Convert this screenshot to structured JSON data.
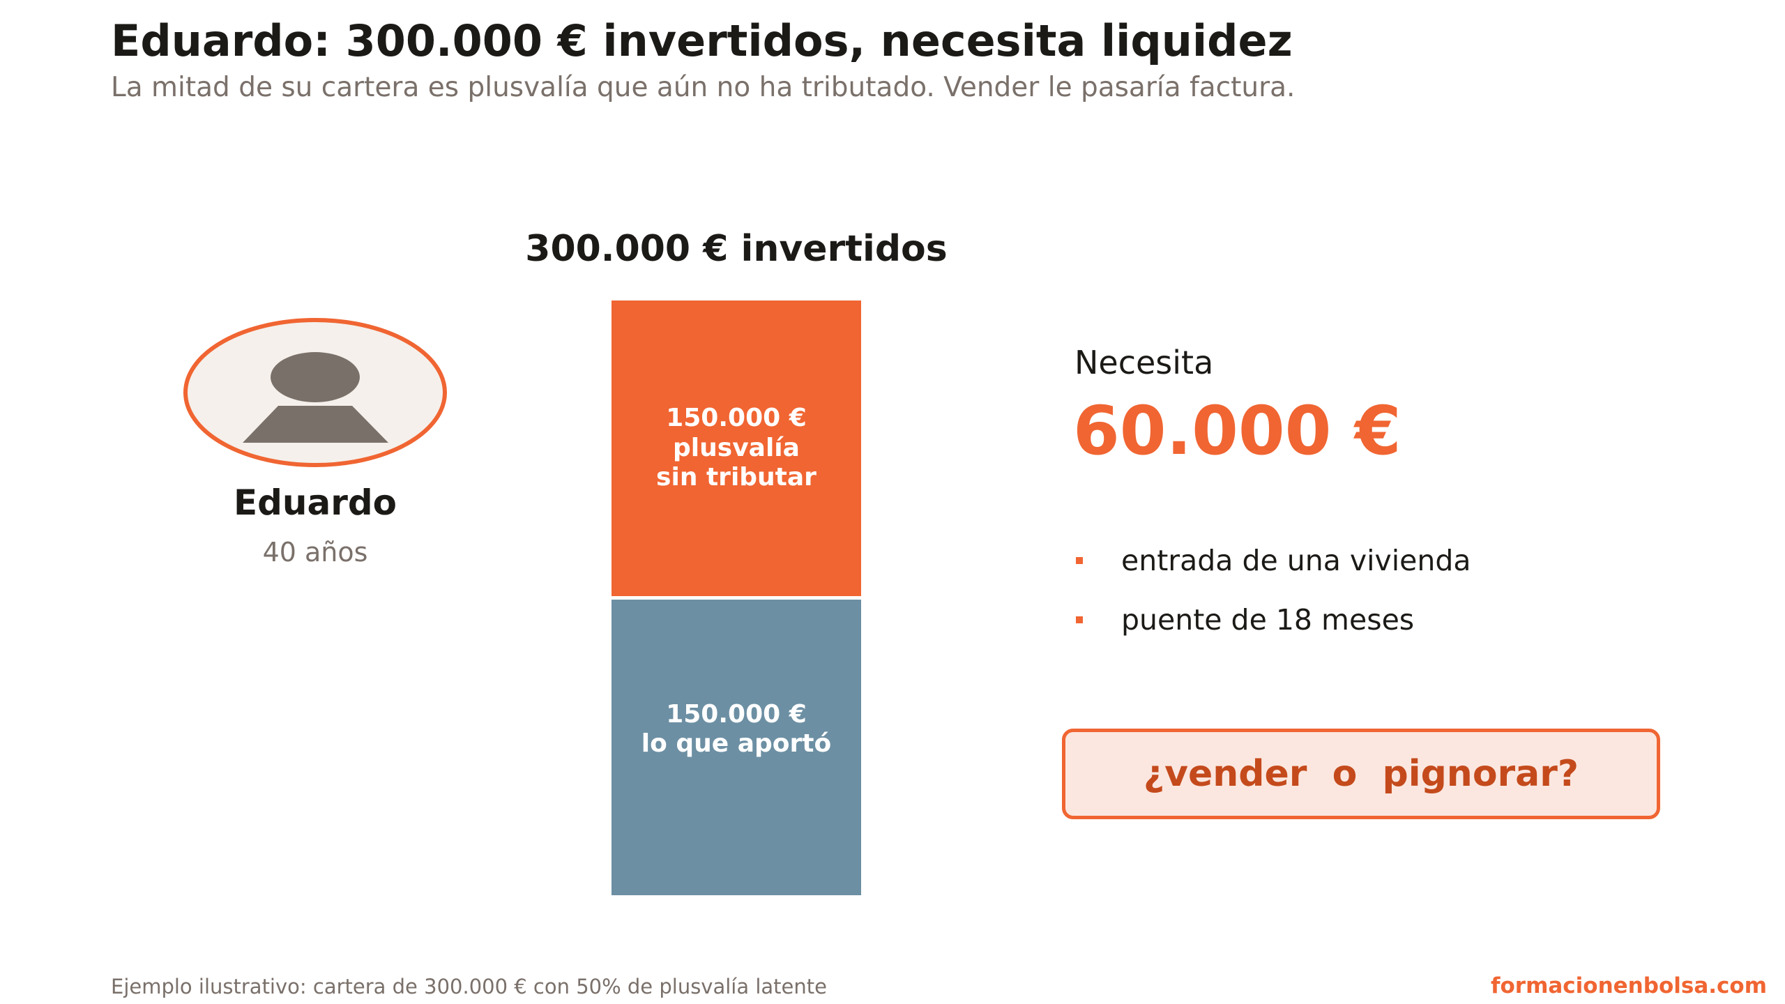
{
  "header": {
    "title": "Eduardo: 300.000 € invertidos, necesita liquidez",
    "subtitle": "La mitad de su cartera es plusvalía que aún no ha tributado. Vender le pasaría factura."
  },
  "person": {
    "icon": "person-icon",
    "name": "Eduardo",
    "age": "40 años"
  },
  "portfolio": {
    "title": "300.000 € invertidos",
    "segments": [
      {
        "amount": "150.000 €",
        "line1": "plusvalía",
        "line2": "sin tributar",
        "color": "#f06532"
      },
      {
        "amount": "150.000 €",
        "line1": "lo que aportó",
        "color": "#6c8fa3"
      }
    ]
  },
  "need": {
    "label": "Necesita",
    "amount": "60.000 €",
    "reasons": [
      "entrada de una vivienda",
      "puente de 18 meses"
    ]
  },
  "cta": {
    "text": "¿vender  o  pignorar?"
  },
  "footer": {
    "note": "Ejemplo ilustrativo: cartera de 300.000 € con 50% de plusvalía latente",
    "brand": "formacionenbolsa.com"
  },
  "colors": {
    "accent": "#f06532",
    "slate": "#6c8fa3",
    "text": "#1c1a17",
    "muted": "#7a706a",
    "cta_bg": "#fbe7df"
  }
}
